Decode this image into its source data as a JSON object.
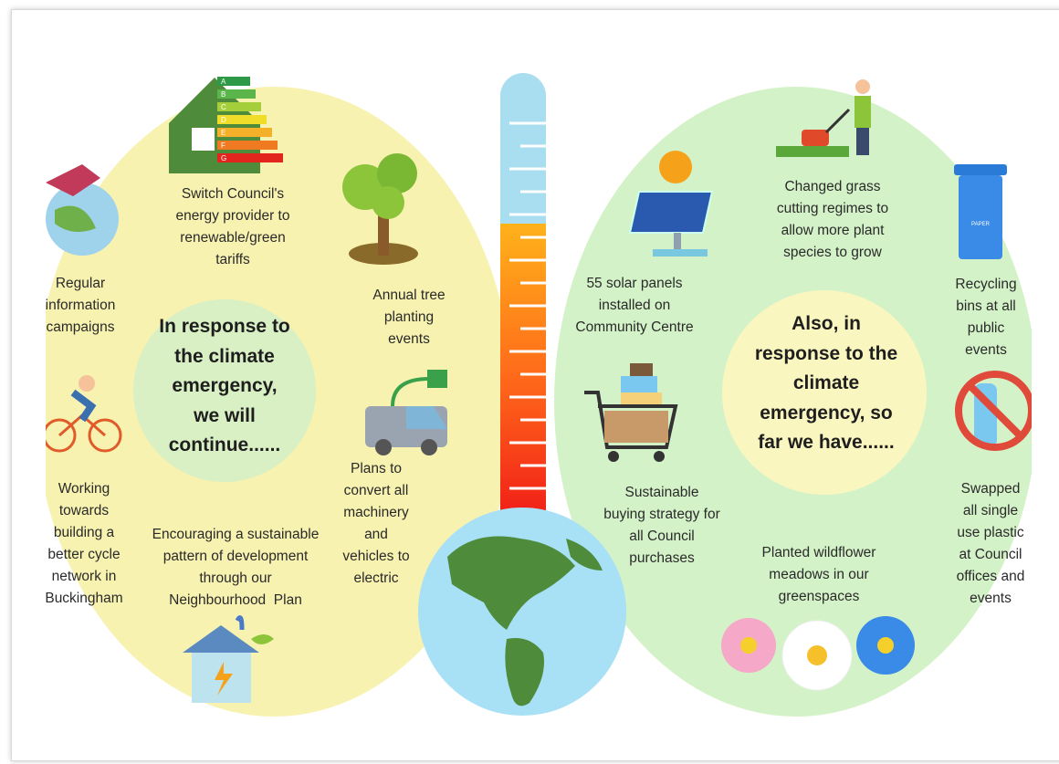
{
  "left": {
    "heading_lines": [
      "In response to",
      "the climate",
      "emergency,",
      "we will",
      "continue......"
    ],
    "energy_rating": [
      "A",
      "B",
      "C",
      "D",
      "E",
      "F",
      "G"
    ],
    "items": [
      {
        "lines": [
          "Switch Council's",
          "energy provider to",
          "renewable/green",
          "tariffs"
        ]
      },
      {
        "lines": [
          "Regular",
          "information",
          "campaigns"
        ]
      },
      {
        "lines": [
          "Annual tree",
          "planting",
          "events"
        ]
      },
      {
        "lines": [
          "Working",
          "towards",
          "building a",
          "better cycle",
          "network in",
          "Buckingham"
        ]
      },
      {
        "lines": [
          "Encouraging a sustainable",
          "pattern of development",
          "through our",
          "Neighbourhood  Plan"
        ]
      },
      {
        "lines": [
          "Plans to",
          "convert all",
          "machinery",
          "and",
          "vehicles to",
          "electric"
        ]
      }
    ]
  },
  "right": {
    "heading_lines": [
      "Also, in",
      "response to the",
      "climate",
      "emergency, so",
      "far we have......"
    ],
    "bin_label": "PAPER",
    "items": [
      {
        "lines": [
          "Changed grass",
          "cutting regimes to",
          "allow more plant",
          "species to grow"
        ]
      },
      {
        "lines": [
          "55 solar panels",
          "installed on",
          "Community Centre"
        ]
      },
      {
        "lines": [
          "Recycling",
          "bins at all",
          "public",
          "events"
        ]
      },
      {
        "lines": [
          "Sustainable",
          "buying strategy for",
          "all Council",
          "purchases"
        ]
      },
      {
        "lines": [
          "Planted wildflower",
          "meadows in our",
          "greenspaces"
        ]
      },
      {
        "lines": [
          "Swapped",
          "all single",
          "use plastic",
          "at Council",
          "offices and",
          "events"
        ]
      }
    ]
  }
}
